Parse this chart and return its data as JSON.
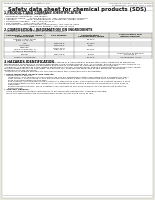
{
  "bg_color": "#e8e8e0",
  "page_bg": "#ffffff",
  "title": "Safety data sheet for chemical products (SDS)",
  "header_left": "Product name: Lithium Ion Battery Cell",
  "header_right_line1": "Substance number: SPS-049-000019",
  "header_right_line2": "Established / Revision: Dec.7.2010",
  "section1_title": "1 PRODUCT AND COMPANY IDENTIFICATION",
  "section1_items": [
    "Product name: Lithium Ion Battery Cell",
    "Product code: Cylindrical-type cell",
    "  INR18650J, INR18650L, INR18650A",
    "Company name:     Sanyo Electric Co., Ltd., Mobile Energy Company",
    "Address:             2301, Kamionakachi, Sumoto-City, Hyogo, Japan",
    "Telephone number:   +81-(799)-26-4111",
    "Fax number:   +81-(799)-26-4129",
    "Emergency telephone number (Weekdays) +81-799-26-2662",
    "                                  (Night and holiday) +81-799-26-4101"
  ],
  "section2_title": "2 COMPOSITION / INFORMATION ON INGREDIENTS",
  "section2_sub1": "Substance or preparation: Preparation",
  "section2_sub2": "Information about the chemical nature of product:",
  "table_header_row": [
    "Component / chemical name /\nSeveral names",
    "CAS number",
    "Concentration /\nConcentration range",
    "Classification and\nhazard labeling"
  ],
  "table_rows": [
    [
      "Lithium cobalt oxide\n(LiMn-Co-Ni-O2)",
      "-",
      "30-60%",
      "-"
    ],
    [
      "Iron",
      "2438-89-5",
      "15-25%",
      "-"
    ],
    [
      "Aluminum",
      "7429-90-5",
      "2-8%",
      "-"
    ],
    [
      "Graphite\n(Kind of graphite-1)\n(A-Mn-co graphite-1)",
      "77782-42-5\n7782-44-0",
      "10-25%",
      "-"
    ],
    [
      "Copper",
      "7440-50-8",
      "5-15%",
      "Sensitization of the skin\ngroup No.2"
    ],
    [
      "Organic electrolyte",
      "-",
      "10-20%",
      "Inflammable liquid"
    ]
  ],
  "section3_title": "3 HAZARDS IDENTIFICATION",
  "section3_lines": [
    "For the battery cell, chemical materials are stored in a hermetically sealed steel case, designed to withstand",
    "temperature changes in a charger-discharger cycle during normal use. As a result, during normal use, there is no",
    "physical danger of ignition or explosion and there is no danger of hazardous materials leakage.",
    "  However, if exposed to a fire, added mechanical shocks, decomposed, added electromotive voltages may cause",
    "the gas inside cannot be operated. The battery cell case will be breached at fire pressure, hazardous",
    "materials may be released.",
    "  Moreover, if heated strongly by the surrounding fire, some gas may be emitted."
  ],
  "section3_bullet1": "Most important hazard and effects:",
  "section3_human": "Human health effects:",
  "section3_sub_lines": [
    "Inhalation: The release of the electrolyte has an anesthesia action and stimulates a respiratory tract.",
    "Skin contact: The release of the electrolyte stimulates a skin. The electrolyte skin contact causes a",
    "sore and stimulation on the skin.",
    "Eye contact: The release of the electrolyte stimulates eyes. The electrolyte eye contact causes a sore",
    "and stimulation on the eye. Especially, a substance that causes a strong inflammation of the eyes is",
    "contained.",
    "Environmental effects: Since a battery cell remains in the environment, do not throw out it into the",
    "environment."
  ],
  "section3_bullet2": "Specific hazards:",
  "section3_spec_lines": [
    "If the electrolyte contacts with water, it will generate detrimental hydrogen fluoride.",
    "Since the said electrolyte is inflammable liquid, do not bring close to fire."
  ]
}
